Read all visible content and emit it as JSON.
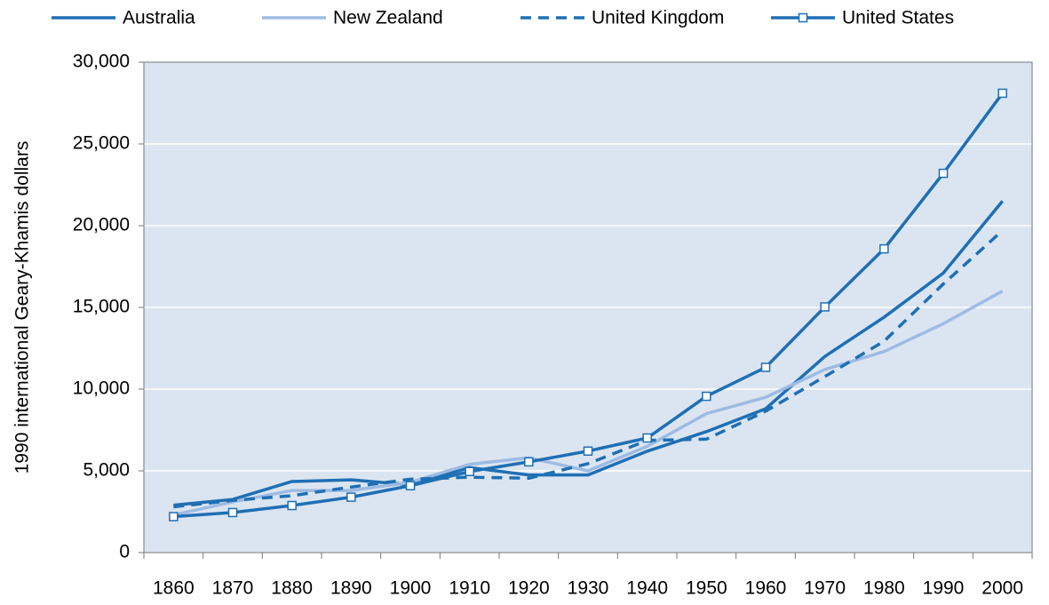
{
  "chart_data": {
    "type": "line",
    "y_label": "1990 international  Geary-Khamis  dollars",
    "categories": [
      "1860",
      "1870",
      "1880",
      "1890",
      "1900",
      "1910",
      "1920",
      "1930",
      "1940",
      "1950",
      "1960",
      "1970",
      "1980",
      "1990",
      "2000"
    ],
    "series": [
      {
        "name": "Australia",
        "color": "#1f6fb4",
        "values": [
          2900,
          3250,
          4350,
          4450,
          4150,
          5200,
          4750,
          4750,
          6200,
          7400,
          8800,
          12000,
          14400,
          17100,
          21500
        ]
      },
      {
        "name": "New Zealand",
        "color": "#9dbbe3",
        "values": [
          2300,
          3100,
          3800,
          3800,
          4300,
          5400,
          5800,
          5000,
          6500,
          8500,
          9500,
          11200,
          12300,
          14000,
          16000
        ]
      },
      {
        "name": "United Kingdom",
        "color": "#1f6fb4",
        "dashed": true,
        "values": [
          2800,
          3190,
          3480,
          4010,
          4490,
          4610,
          4550,
          5440,
          6860,
          6940,
          8650,
          10770,
          12930,
          16430,
          19700
        ]
      },
      {
        "name": "United States",
        "color": "#1f6fb4",
        "marker": "square",
        "values": [
          2200,
          2450,
          2880,
          3390,
          4090,
          4960,
          5550,
          6210,
          7010,
          9560,
          11330,
          15030,
          18580,
          23200,
          28100
        ]
      }
    ],
    "ylim": [
      0,
      30000
    ],
    "yticks": [
      0,
      {
        "value": 5000,
        "label": "5,000"
      },
      {
        "value": 10000,
        "label": "10,000"
      },
      {
        "value": 15000,
        "label": "15,000"
      },
      {
        "value": 20000,
        "label": "20,000"
      },
      {
        "value": 25000,
        "label": "25,000"
      },
      {
        "value": 30000,
        "label": "30,000"
      }
    ],
    "grid": true,
    "legend": "top",
    "plot_background": "#dbe5f1"
  }
}
